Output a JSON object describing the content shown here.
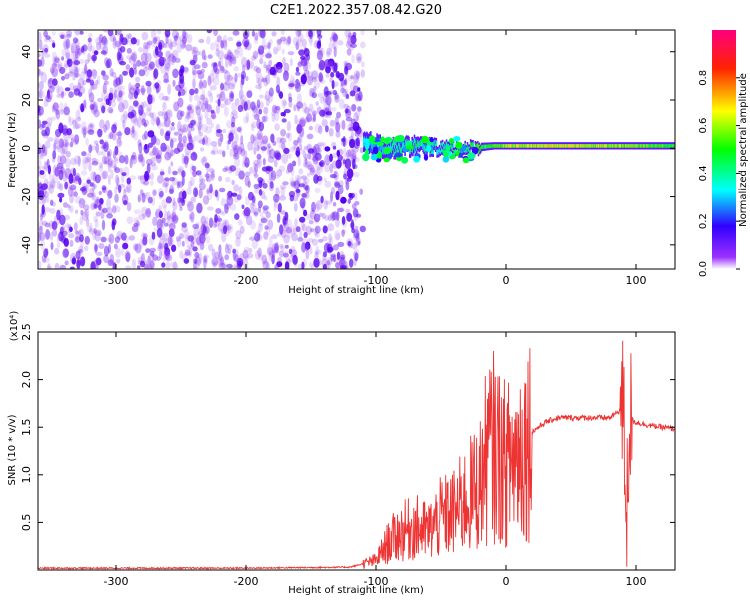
{
  "title": "C2E1.2022.357.08.42.G20",
  "chart_data": [
    {
      "type": "heatmap",
      "xlabel": "Height of straight line (km)",
      "ylabel": "Frequency (Hz)",
      "xlim": [
        -360,
        130
      ],
      "ylim": [
        -50,
        49
      ],
      "xticks": [
        -300,
        -200,
        -100,
        0,
        100
      ],
      "yticks": [
        -40,
        -20,
        0,
        20,
        40
      ],
      "grid": false,
      "colorbar": {
        "label": "Normalized spectral amplitude",
        "range": [
          0,
          1
        ],
        "ticks": [
          0.0,
          0.2,
          0.4,
          0.6,
          0.8
        ],
        "colors": [
          "#ffffff",
          "#7b00ff",
          "#0000ff",
          "#00ffff",
          "#00ff00",
          "#ffff00",
          "#ff0000",
          "#ff0080"
        ]
      },
      "band": {
        "x": [
          -110,
          -90,
          -70,
          -50,
          -30,
          -10,
          0,
          20,
          40,
          60,
          80,
          100,
          130
        ],
        "center_hz": [
          2,
          0,
          1,
          0,
          0,
          1,
          1,
          1,
          1,
          1,
          1,
          1,
          1
        ],
        "halfwidth_hz": [
          4,
          3,
          3,
          2,
          2,
          1.5,
          1.5,
          1.5,
          1.5,
          1.5,
          1.5,
          1.5,
          1.5
        ],
        "amplitude": [
          0.3,
          0.35,
          0.4,
          0.35,
          0.45,
          0.5,
          0.6,
          0.6,
          0.65,
          0.6,
          0.6,
          0.55,
          0.5
        ]
      },
      "noise_region": {
        "x": [
          -360,
          -110
        ],
        "amplitude_max": 0.15
      }
    },
    {
      "type": "line",
      "xlabel": "Height of straight line (km)",
      "ylabel": "SNR (10 * v/v)",
      "y_multiplier": "(x10⁴)",
      "xlim": [
        -360,
        130
      ],
      "ylim": [
        0,
        2.5
      ],
      "xticks": [
        -300,
        -200,
        -100,
        0,
        100
      ],
      "yticks": [
        0.5,
        1.0,
        1.5,
        2.0,
        2.5
      ],
      "grid": false,
      "series": [
        {
          "color": "#ee3333",
          "x": [
            -360,
            -300,
            -200,
            -120,
            -100,
            -90,
            -80,
            -70,
            -60,
            -50,
            -40,
            -30,
            -20,
            -15,
            -10,
            0,
            10,
            20,
            30,
            40,
            60,
            80,
            90,
            93,
            95,
            100,
            110,
            130
          ],
          "y": [
            0.02,
            0.02,
            0.02,
            0.03,
            0.1,
            0.3,
            0.4,
            0.45,
            0.4,
            0.55,
            0.6,
            0.75,
            0.9,
            1.2,
            1.3,
            1.1,
            1.25,
            1.45,
            1.55,
            1.6,
            1.6,
            1.6,
            1.7,
            0.6,
            1.6,
            1.55,
            1.52,
            1.48
          ]
        }
      ]
    }
  ]
}
